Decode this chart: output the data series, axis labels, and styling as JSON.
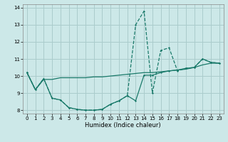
{
  "background_color": "#cce8e8",
  "grid_color": "#aacccc",
  "line_color": "#1a7a6a",
  "xlabel": "Humidex (Indice chaleur)",
  "xlim": [
    -0.5,
    23.5
  ],
  "ylim": [
    7.8,
    14.2
  ],
  "yticks": [
    8,
    9,
    10,
    11,
    12,
    13,
    14
  ],
  "xticks": [
    0,
    1,
    2,
    3,
    4,
    5,
    6,
    7,
    8,
    9,
    10,
    11,
    12,
    13,
    14,
    15,
    16,
    17,
    18,
    19,
    20,
    21,
    22,
    23
  ],
  "seriesA_x": [
    0,
    1,
    2,
    3,
    4,
    5,
    6,
    7,
    8,
    9,
    10,
    11,
    12,
    13,
    14,
    15,
    16,
    17,
    18,
    19,
    20,
    21,
    22,
    23
  ],
  "seriesA_y": [
    10.2,
    9.2,
    9.8,
    9.8,
    9.9,
    9.9,
    9.9,
    9.9,
    9.95,
    9.95,
    10.0,
    10.05,
    10.1,
    10.15,
    10.2,
    10.2,
    10.25,
    10.3,
    10.35,
    10.4,
    10.5,
    10.65,
    10.75,
    10.75
  ],
  "seriesB_x": [
    0,
    1,
    2,
    3,
    4,
    5,
    6,
    7,
    8,
    9,
    10,
    11,
    12,
    13,
    14,
    15,
    16,
    17,
    18,
    19,
    20,
    21,
    22,
    23
  ],
  "seriesB_y": [
    10.2,
    9.2,
    9.85,
    8.7,
    8.6,
    8.15,
    8.05,
    8.0,
    8.0,
    8.05,
    8.35,
    8.55,
    8.85,
    13.0,
    13.8,
    9.0,
    11.5,
    11.65,
    10.3,
    10.45,
    10.5,
    11.0,
    10.8,
    10.75
  ],
  "seriesC_x": [
    0,
    1,
    2,
    3,
    4,
    5,
    6,
    7,
    8,
    9,
    10,
    11,
    12,
    13,
    14,
    15,
    16,
    17,
    18,
    19,
    20,
    21,
    22,
    23
  ],
  "seriesC_y": [
    10.2,
    9.2,
    9.85,
    8.7,
    8.6,
    8.15,
    8.05,
    8.0,
    8.0,
    8.05,
    8.35,
    8.55,
    8.85,
    8.55,
    10.05,
    10.05,
    10.2,
    10.3,
    10.35,
    10.45,
    10.5,
    11.0,
    10.8,
    10.75
  ]
}
